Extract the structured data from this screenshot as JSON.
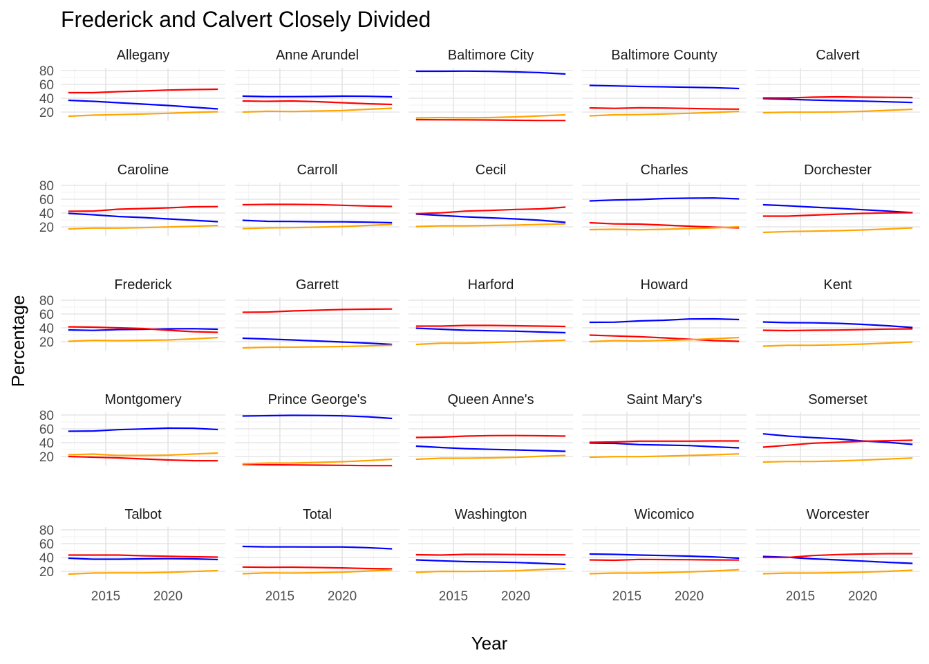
{
  "chart_data": {
    "type": "line",
    "title": "Frederick and Calvert Closely Divided",
    "xlabel": "Year",
    "ylabel": "Percentage",
    "x_ticks": [
      2015,
      2020
    ],
    "y_ticks": [
      20,
      40,
      60,
      80
    ],
    "xlim": [
      2011.4,
      2024.6
    ],
    "ylim": [
      7,
      84
    ],
    "grid": true,
    "legend": "none",
    "x": [
      2012,
      2014,
      2016,
      2018,
      2020,
      2022,
      2024
    ],
    "series_colors": [
      "#0000FF",
      "#FF0000",
      "#FFA500"
    ],
    "panels": [
      {
        "name": "Allegany",
        "blue": [
          37,
          35.5,
          33.5,
          31.5,
          29.5,
          27,
          24.5
        ],
        "red": [
          48,
          48,
          49.5,
          50.5,
          51.8,
          52.5,
          53
        ],
        "orange": [
          14,
          15.5,
          16.3,
          17.2,
          18.2,
          19.5,
          20.5
        ]
      },
      {
        "name": "Anne Arundel",
        "blue": [
          43,
          42.3,
          42.3,
          42.5,
          43,
          42.8,
          42
        ],
        "red": [
          36,
          35.5,
          36,
          35,
          33.5,
          32,
          31
        ],
        "orange": [
          20,
          21.2,
          20.8,
          21.5,
          22.2,
          24,
          25.5
        ]
      },
      {
        "name": "Baltimore City",
        "blue": [
          79,
          79,
          79.2,
          78.8,
          78,
          77,
          75
        ],
        "red": [
          9,
          8.8,
          8.7,
          8.5,
          8.1,
          7.8,
          7.8
        ],
        "orange": [
          11.5,
          12,
          11.6,
          12,
          13,
          14.5,
          16
        ]
      },
      {
        "name": "Baltimore County",
        "blue": [
          58.5,
          57.8,
          57,
          56.5,
          55.8,
          55.2,
          54
        ],
        "red": [
          26,
          25.3,
          26.2,
          25.8,
          25.2,
          24.5,
          24.2
        ],
        "orange": [
          14.5,
          16,
          16.3,
          17.2,
          18.2,
          19.5,
          21
        ]
      },
      {
        "name": "Calvert",
        "blue": [
          39.5,
          38.5,
          37.3,
          36.5,
          35.8,
          34.8,
          33.8
        ],
        "red": [
          40.5,
          40.5,
          41.5,
          42,
          41.5,
          41.3,
          41
        ],
        "orange": [
          19,
          19.8,
          19.8,
          20.2,
          21,
          22.5,
          24
        ]
      },
      {
        "name": "Caroline",
        "blue": [
          39.5,
          37.5,
          35,
          33.5,
          31.5,
          29.5,
          27.5
        ],
        "red": [
          42.5,
          42.8,
          45.5,
          46.5,
          47.5,
          49,
          49.3
        ],
        "orange": [
          17,
          18.3,
          18.2,
          18.8,
          19.8,
          20.8,
          22
        ]
      },
      {
        "name": "Carroll",
        "blue": [
          29.5,
          28,
          27.8,
          27.3,
          27.3,
          26.8,
          26
        ],
        "red": [
          52,
          52.5,
          52.5,
          52.2,
          51.2,
          50.2,
          49.5
        ],
        "orange": [
          17.5,
          18.5,
          18.8,
          19.5,
          20.5,
          22,
          23.5
        ]
      },
      {
        "name": "Cecil",
        "blue": [
          38.5,
          36.5,
          34.5,
          33,
          31.5,
          29.5,
          26.5
        ],
        "red": [
          39,
          40.3,
          42.8,
          43.8,
          45.2,
          46,
          48.5
        ],
        "orange": [
          20.5,
          21.5,
          21.5,
          22,
          22.5,
          23.5,
          24.3
        ]
      },
      {
        "name": "Charles",
        "blue": [
          57.5,
          58.8,
          59.5,
          61,
          61.5,
          61.8,
          60.5
        ],
        "red": [
          26,
          24.3,
          24,
          22.5,
          21,
          19.5,
          18.5
        ],
        "orange": [
          16,
          16.5,
          15.8,
          16.5,
          17.5,
          18.5,
          20
        ]
      },
      {
        "name": "Dorchester",
        "blue": [
          52,
          50.5,
          48.5,
          46.8,
          44.8,
          42.8,
          40.5
        ],
        "red": [
          35.5,
          35.5,
          37,
          38.3,
          39.5,
          40.2,
          40.5
        ],
        "orange": [
          12,
          13.2,
          13.8,
          14.5,
          15.5,
          17,
          18.5
        ]
      },
      {
        "name": "Frederick",
        "blue": [
          37,
          36.3,
          37.5,
          37.8,
          38.5,
          38.8,
          38
        ],
        "red": [
          41.5,
          41,
          40,
          39,
          36.5,
          34.5,
          33.5
        ],
        "orange": [
          20.5,
          22,
          21.5,
          22,
          22.5,
          24,
          26
        ]
      },
      {
        "name": "Garrett",
        "blue": [
          25,
          23.8,
          22.5,
          21,
          19.5,
          18,
          16
        ],
        "red": [
          62.5,
          62.8,
          64.5,
          65.5,
          66.5,
          67,
          67.3
        ],
        "orange": [
          11,
          12,
          12.1,
          12.5,
          13,
          13.8,
          14.8
        ]
      },
      {
        "name": "Harford",
        "blue": [
          39.5,
          38,
          36.5,
          35.8,
          35.2,
          34,
          33
        ],
        "red": [
          42.5,
          42.5,
          43.5,
          43.5,
          43,
          42.5,
          42
        ],
        "orange": [
          16,
          17.8,
          17.8,
          18.8,
          19.8,
          21,
          22.2
        ]
      },
      {
        "name": "Howard",
        "blue": [
          48,
          48.2,
          50,
          51,
          52.8,
          53,
          52
        ],
        "red": [
          29.5,
          28.3,
          27.2,
          25.5,
          23.5,
          21.5,
          20.5
        ],
        "orange": [
          20,
          21.5,
          21,
          21.8,
          22.8,
          24.3,
          26
        ]
      },
      {
        "name": "Kent",
        "blue": [
          48.5,
          47.5,
          47.3,
          46.5,
          45,
          43,
          40.5
        ],
        "red": [
          36.5,
          36,
          36.5,
          36.8,
          37.5,
          38.2,
          38.5
        ],
        "orange": [
          13.5,
          14.8,
          14.8,
          15.5,
          16.5,
          18,
          19.5
        ]
      },
      {
        "name": "Montgomery",
        "blue": [
          56.5,
          56.8,
          58.8,
          59.8,
          61,
          60.8,
          59
        ],
        "red": [
          20,
          19,
          18,
          16.5,
          15,
          14,
          13.8
        ],
        "orange": [
          22.5,
          23.5,
          21.5,
          21.5,
          22,
          23.5,
          25
        ]
      },
      {
        "name": "Prince George's",
        "blue": [
          78.5,
          79,
          79.5,
          79.3,
          78.8,
          77.5,
          75
        ],
        "red": [
          8.5,
          8,
          7.8,
          7.5,
          7.2,
          6.8,
          6.8
        ],
        "orange": [
          9.5,
          10.5,
          10.5,
          11.5,
          12.5,
          14,
          16
        ]
      },
      {
        "name": "Queen Anne's",
        "blue": [
          35,
          33,
          31.3,
          30.3,
          29.5,
          28.5,
          27.5
        ],
        "red": [
          47.5,
          48,
          49.5,
          50.2,
          50.3,
          50,
          49.5
        ],
        "orange": [
          16,
          17.5,
          17.5,
          18,
          18.8,
          20.3,
          21.5
        ]
      },
      {
        "name": "Saint Mary's",
        "blue": [
          39.5,
          39,
          37.2,
          36.5,
          35.8,
          34,
          32.5
        ],
        "red": [
          40.5,
          41,
          42.2,
          42.2,
          42.2,
          42.5,
          42.5
        ],
        "orange": [
          19,
          19.8,
          19.8,
          20.5,
          21.5,
          22.5,
          23.8
        ]
      },
      {
        "name": "Somerset",
        "blue": [
          52.8,
          49.5,
          47.3,
          45.5,
          42.5,
          40.5,
          37.5
        ],
        "red": [
          33.5,
          36.3,
          39.2,
          40.5,
          42,
          42.8,
          43.5
        ],
        "orange": [
          12,
          12.8,
          12.8,
          13.5,
          14.8,
          16.3,
          17.8
        ]
      },
      {
        "name": "Talbot",
        "blue": [
          39,
          37.5,
          37.5,
          38,
          38.3,
          38,
          37
        ],
        "red": [
          43.5,
          43.5,
          43.5,
          42.5,
          41.8,
          41,
          40.5
        ],
        "orange": [
          16,
          17.5,
          17.8,
          17.8,
          18.5,
          19.8,
          21
        ]
      },
      {
        "name": "Total",
        "blue": [
          56,
          55.3,
          55.3,
          55.2,
          55.2,
          54.2,
          52.5
        ],
        "red": [
          26.2,
          25.8,
          26,
          25.5,
          24.9,
          24,
          23.5
        ],
        "orange": [
          16.5,
          17.8,
          17.5,
          18,
          18.8,
          20.3,
          22
        ]
      },
      {
        "name": "Washington",
        "blue": [
          36.5,
          35.2,
          34,
          33.5,
          32.8,
          31.5,
          30
        ],
        "red": [
          44,
          43.5,
          44.5,
          44.5,
          44.3,
          44,
          43.8
        ],
        "orange": [
          18.5,
          20,
          19.8,
          20.2,
          20.8,
          22.5,
          24
        ]
      },
      {
        "name": "Wicomico",
        "blue": [
          45,
          44.5,
          43.5,
          42.8,
          42,
          40.8,
          39
        ],
        "red": [
          36.5,
          36,
          37.2,
          37,
          36.8,
          36.5,
          36.3
        ],
        "orange": [
          16.5,
          17.5,
          17.5,
          18.2,
          19.2,
          20.5,
          22.3
        ]
      },
      {
        "name": "Worcester",
        "blue": [
          41.5,
          40.3,
          38,
          36.5,
          34.8,
          33,
          31.5
        ],
        "red": [
          40,
          40,
          42.8,
          44.2,
          45,
          45.5,
          45.5
        ],
        "orange": [
          16.5,
          17.5,
          17.5,
          18,
          18.8,
          20,
          21.5
        ]
      }
    ]
  }
}
